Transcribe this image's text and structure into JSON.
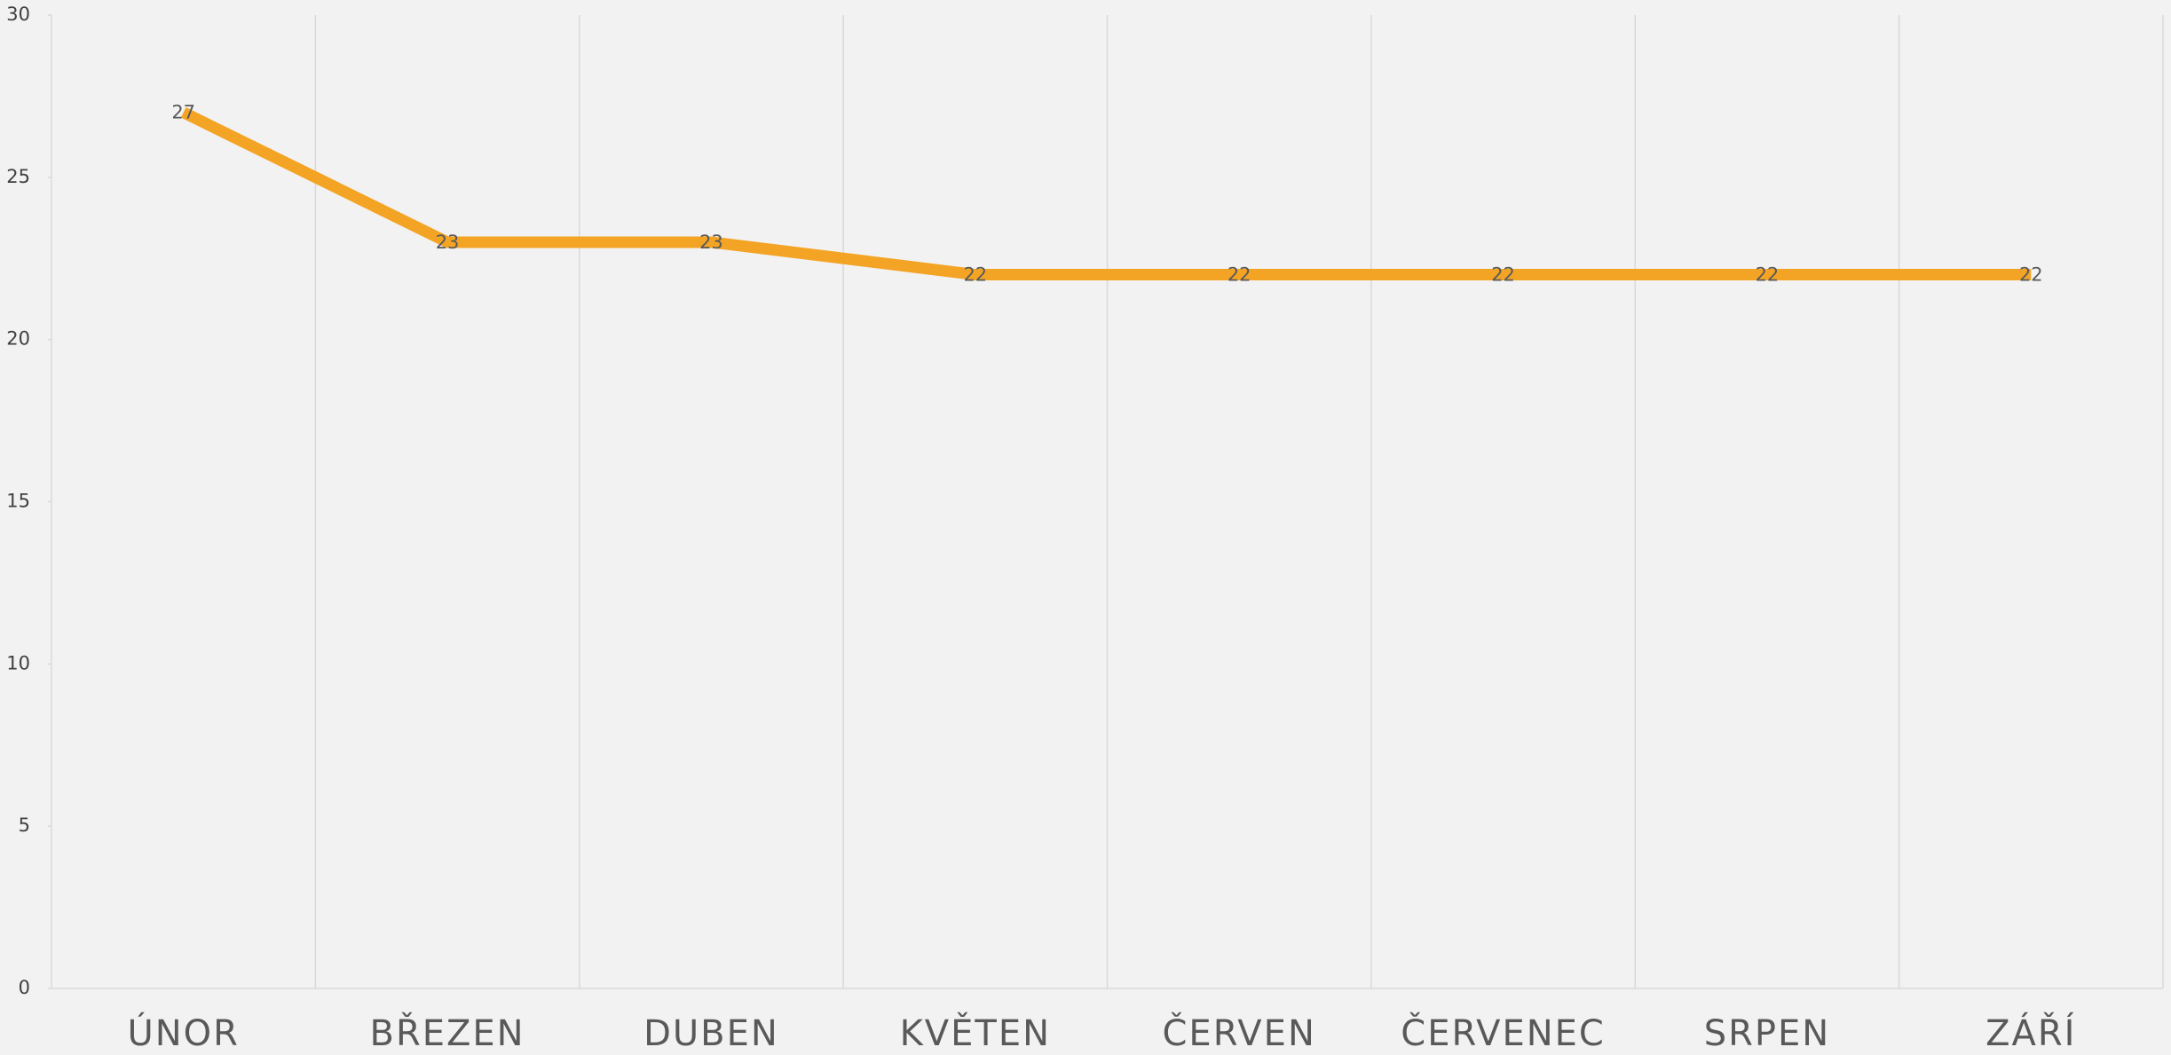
{
  "chart_data": {
    "type": "line",
    "categories": [
      "ÚNOR",
      "BŘEZEN",
      "DUBEN",
      "KVĚTEN",
      "ČERVEN",
      "ČERVENEC",
      "SRPEN",
      "ZÁŘÍ"
    ],
    "values": [
      27,
      23,
      23,
      22,
      22,
      22,
      22,
      22
    ],
    "color": "#f4a425",
    "ylim": [
      0,
      30
    ],
    "yticks": [
      0,
      5,
      10,
      15,
      20,
      25,
      30
    ],
    "grid": true
  }
}
